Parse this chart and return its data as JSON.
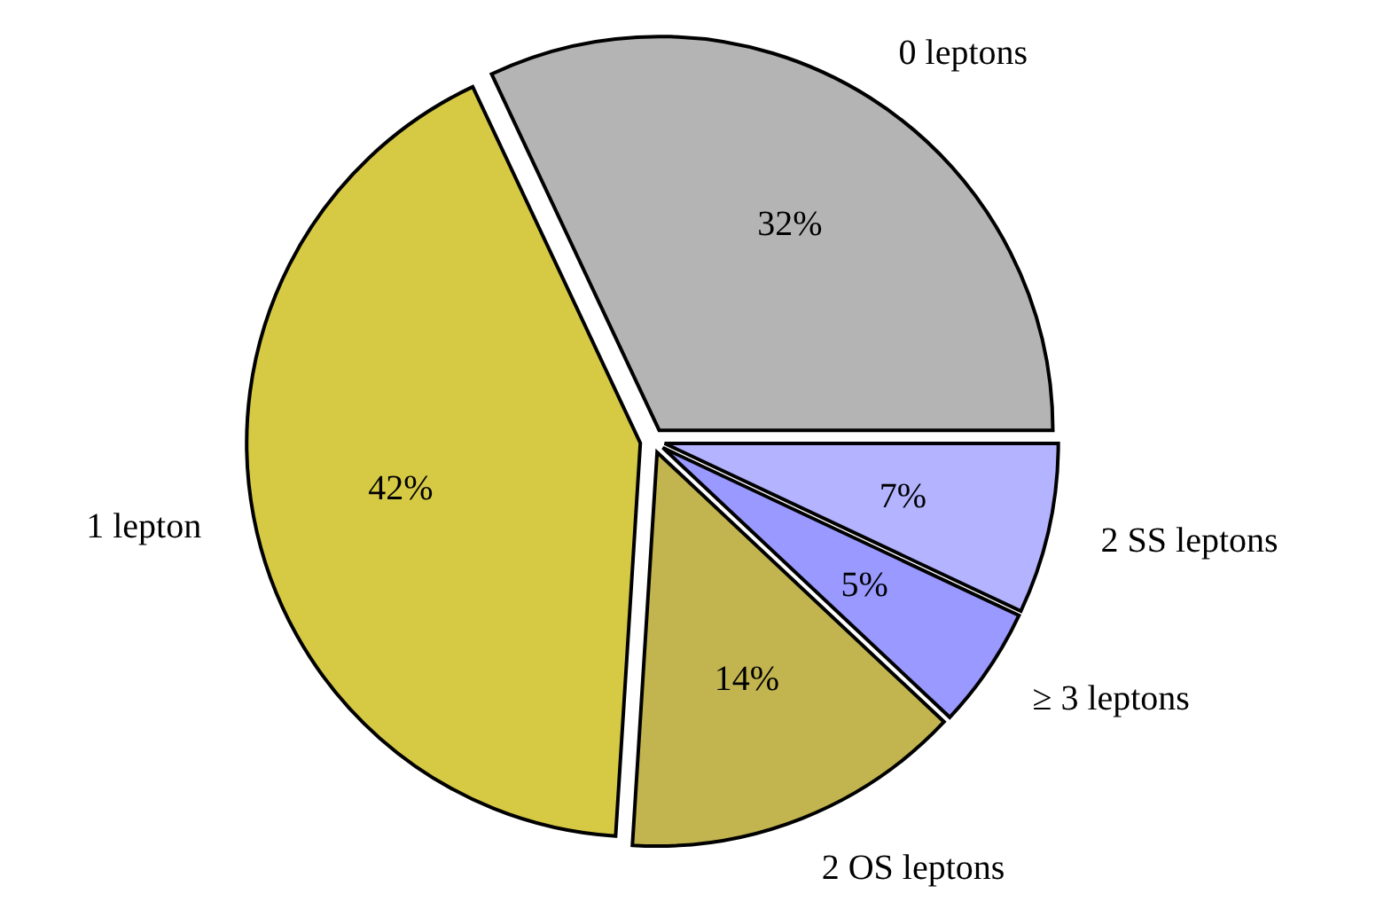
{
  "chart_data": {
    "type": "pie",
    "categories": [
      "0 leptons",
      "1 lepton",
      "2 OS leptons",
      "≥ 3 leptons",
      "2 SS leptons"
    ],
    "values": [
      32,
      42,
      14,
      5,
      7
    ],
    "colors": [
      "#b4b4b4",
      "#d6ca45",
      "#c2b550",
      "#9999ff",
      "#b3b3ff"
    ],
    "value_labels": [
      "32%",
      "42%",
      "14%",
      "5%",
      "7%"
    ]
  }
}
